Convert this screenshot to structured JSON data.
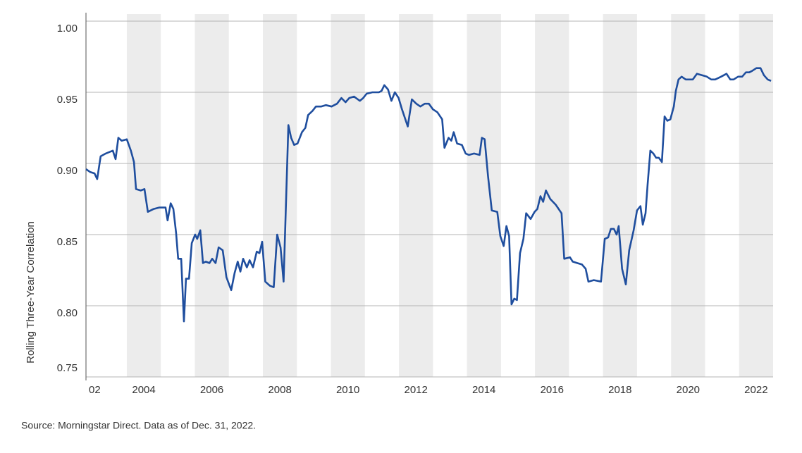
{
  "chart_data": {
    "type": "line",
    "ylabel": "Rolling Three-Year Correlation",
    "source": "Source: Morningstar Direct. Data as of Dec. 31, 2022.",
    "xlim": [
      2002.8,
      2023.0
    ],
    "xticks": [
      {
        "value": 2002,
        "label": "02"
      },
      2004,
      2006,
      2008,
      2010,
      2012,
      2014,
      2016,
      2018,
      2020,
      2022
    ],
    "ylim": [
      0.75,
      1.0
    ],
    "yticks": [
      0.75,
      {
        "value": 0.8,
        "label": "0.80"
      },
      0.85,
      {
        "value": 0.9,
        "label": "0.90"
      },
      0.95,
      {
        "value": 1,
        "label": "1.00"
      }
    ],
    "grid": true,
    "shaded_year_bands": true,
    "series": [
      {
        "color": "#1f4e9e",
        "x": [
          2002.8,
          2002.92,
          2003.05,
          2003.13,
          2003.23,
          2003.38,
          2003.59,
          2003.67,
          2003.75,
          2003.85,
          2004.0,
          2004.12,
          2004.21,
          2004.27,
          2004.41,
          2004.52,
          2004.62,
          2004.79,
          2004.95,
          2005.14,
          2005.2,
          2005.29,
          2005.37,
          2005.45,
          2005.51,
          2005.6,
          2005.68,
          2005.74,
          2005.83,
          2005.91,
          2006.01,
          2006.07,
          2006.16,
          2006.24,
          2006.32,
          2006.43,
          2006.51,
          2006.61,
          2006.7,
          2006.82,
          2006.93,
          2007.07,
          2007.17,
          2007.26,
          2007.34,
          2007.42,
          2007.53,
          2007.61,
          2007.71,
          2007.82,
          2007.9,
          2007.98,
          2008.07,
          2008.21,
          2008.32,
          2008.42,
          2008.52,
          2008.61,
          2008.75,
          2008.83,
          2008.92,
          2009.02,
          2009.15,
          2009.25,
          2009.33,
          2009.46,
          2009.56,
          2009.71,
          2009.85,
          2010.02,
          2010.18,
          2010.31,
          2010.43,
          2010.54,
          2010.68,
          2010.85,
          2010.95,
          2011.05,
          2011.22,
          2011.41,
          2011.49,
          2011.57,
          2011.68,
          2011.78,
          2011.88,
          2011.99,
          2012.09,
          2012.26,
          2012.38,
          2012.51,
          2012.63,
          2012.76,
          2012.88,
          2013.0,
          2013.13,
          2013.27,
          2013.34,
          2013.46,
          2013.54,
          2013.61,
          2013.71,
          2013.85,
          2013.96,
          2014.06,
          2014.21,
          2014.37,
          2014.44,
          2014.52,
          2014.62,
          2014.73,
          2014.89,
          2014.98,
          2015.08,
          2015.16,
          2015.24,
          2015.31,
          2015.39,
          2015.47,
          2015.56,
          2015.66,
          2015.74,
          2015.87,
          2015.99,
          2016.07,
          2016.16,
          2016.24,
          2016.32,
          2016.45,
          2016.61,
          2016.78,
          2016.86,
          2017.03,
          2017.11,
          2017.24,
          2017.38,
          2017.49,
          2017.57,
          2017.73,
          2017.94,
          2018.05,
          2018.15,
          2018.23,
          2018.32,
          2018.4,
          2018.46,
          2018.56,
          2018.67,
          2018.77,
          2018.9,
          2019.0,
          2019.1,
          2019.17,
          2019.25,
          2019.31,
          2019.39,
          2019.48,
          2019.56,
          2019.64,
          2019.73,
          2019.81,
          2019.89,
          2019.98,
          2020.08,
          2020.14,
          2020.22,
          2020.31,
          2020.43,
          2020.56,
          2020.64,
          2020.76,
          2020.91,
          2021.05,
          2021.18,
          2021.3,
          2021.47,
          2021.63,
          2021.74,
          2021.84,
          2021.97,
          2022.09,
          2022.2,
          2022.3,
          2022.38,
          2022.51,
          2022.63,
          2022.73,
          2022.84,
          2022.94
        ],
        "values": [
          0.896,
          0.894,
          0.893,
          0.889,
          0.905,
          0.907,
          0.909,
          0.903,
          0.918,
          0.916,
          0.917,
          0.909,
          0.901,
          0.882,
          0.881,
          0.882,
          0.866,
          0.868,
          0.869,
          0.869,
          0.86,
          0.872,
          0.868,
          0.851,
          0.833,
          0.833,
          0.789,
          0.819,
          0.819,
          0.844,
          0.85,
          0.847,
          0.853,
          0.83,
          0.831,
          0.83,
          0.833,
          0.83,
          0.841,
          0.839,
          0.82,
          0.811,
          0.823,
          0.831,
          0.824,
          0.833,
          0.827,
          0.832,
          0.827,
          0.838,
          0.837,
          0.845,
          0.817,
          0.814,
          0.813,
          0.85,
          0.841,
          0.817,
          0.927,
          0.918,
          0.913,
          0.914,
          0.922,
          0.925,
          0.934,
          0.937,
          0.94,
          0.94,
          0.941,
          0.94,
          0.942,
          0.946,
          0.943,
          0.946,
          0.947,
          0.944,
          0.946,
          0.949,
          0.95,
          0.95,
          0.951,
          0.955,
          0.952,
          0.944,
          0.95,
          0.946,
          0.938,
          0.926,
          0.945,
          0.942,
          0.94,
          0.942,
          0.942,
          0.938,
          0.936,
          0.931,
          0.911,
          0.918,
          0.916,
          0.922,
          0.914,
          0.913,
          0.907,
          0.906,
          0.907,
          0.906,
          0.918,
          0.917,
          0.891,
          0.867,
          0.866,
          0.849,
          0.842,
          0.856,
          0.849,
          0.801,
          0.805,
          0.804,
          0.837,
          0.847,
          0.865,
          0.861,
          0.866,
          0.868,
          0.877,
          0.873,
          0.881,
          0.875,
          0.871,
          0.865,
          0.833,
          0.834,
          0.831,
          0.83,
          0.829,
          0.826,
          0.817,
          0.818,
          0.817,
          0.847,
          0.848,
          0.854,
          0.854,
          0.85,
          0.856,
          0.826,
          0.815,
          0.839,
          0.853,
          0.867,
          0.87,
          0.857,
          0.865,
          0.885,
          0.909,
          0.907,
          0.904,
          0.904,
          0.901,
          0.933,
          0.93,
          0.931,
          0.94,
          0.951,
          0.959,
          0.961,
          0.959,
          0.959,
          0.959,
          0.963,
          0.962,
          0.961,
          0.959,
          0.959,
          0.961,
          0.963,
          0.959,
          0.959,
          0.961,
          0.961,
          0.964,
          0.964,
          0.965,
          0.967,
          0.967,
          0.962,
          0.959,
          0.958
        ]
      }
    ]
  }
}
